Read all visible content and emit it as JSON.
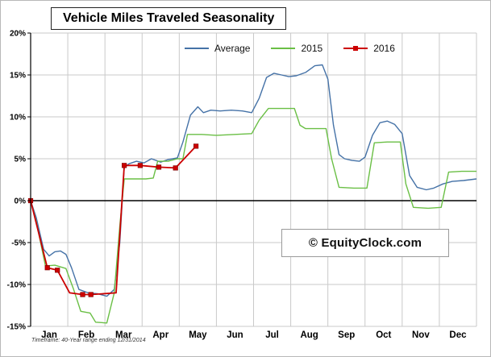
{
  "title": "Vehicle Miles Traveled Seasonality",
  "watermark": "© EquityClock.com",
  "footnote": "Timeframe: 40-Year range ending 12/31/2014",
  "colors": {
    "average": "#4572a7",
    "y2015": "#6abf45",
    "y2016": "#cc0000",
    "grid": "#c9c9c9",
    "zero_line": "#000000",
    "axis": "#000000"
  },
  "chart_data": {
    "type": "line",
    "title": "Vehicle Miles Traveled Seasonality",
    "x_unit": "month index (0 = Jan 1, 12 = Dec 31)",
    "xlim": [
      0,
      12
    ],
    "ylim": [
      -15,
      20
    ],
    "grid": true,
    "zero_line": true,
    "legend_position": "top-center",
    "x_tick_labels": [
      "Jan",
      "Feb",
      "Mar",
      "Apr",
      "May",
      "Jun",
      "Jul",
      "Aug",
      "Sep",
      "Oct",
      "Nov",
      "Dec"
    ],
    "y_tick_labels": [
      "20%",
      "15%",
      "10%",
      "5%",
      "0%",
      "-5%",
      "-10%",
      "-15%"
    ],
    "y_tick_values": [
      20,
      15,
      10,
      5,
      0,
      -5,
      -10,
      -15
    ],
    "series": [
      {
        "name": "Average",
        "color": "#4572a7",
        "marker": "none",
        "points": [
          [
            0.0,
            0.0
          ],
          [
            0.15,
            -2.0
          ],
          [
            0.35,
            -5.8
          ],
          [
            0.5,
            -6.6
          ],
          [
            0.65,
            -6.1
          ],
          [
            0.8,
            -6.0
          ],
          [
            0.95,
            -6.4
          ],
          [
            1.1,
            -8.0
          ],
          [
            1.3,
            -10.6
          ],
          [
            1.55,
            -11.0
          ],
          [
            1.8,
            -11.1
          ],
          [
            2.05,
            -11.4
          ],
          [
            2.25,
            -10.6
          ],
          [
            2.4,
            -5.0
          ],
          [
            2.52,
            4.0
          ],
          [
            2.65,
            4.4
          ],
          [
            2.85,
            4.7
          ],
          [
            3.05,
            4.5
          ],
          [
            3.25,
            5.0
          ],
          [
            3.5,
            4.6
          ],
          [
            3.7,
            4.9
          ],
          [
            3.95,
            5.1
          ],
          [
            4.1,
            7.0
          ],
          [
            4.3,
            10.2
          ],
          [
            4.5,
            11.2
          ],
          [
            4.65,
            10.5
          ],
          [
            4.85,
            10.8
          ],
          [
            5.1,
            10.7
          ],
          [
            5.4,
            10.8
          ],
          [
            5.7,
            10.7
          ],
          [
            5.95,
            10.5
          ],
          [
            6.15,
            12.2
          ],
          [
            6.35,
            14.7
          ],
          [
            6.55,
            15.2
          ],
          [
            6.75,
            15.0
          ],
          [
            6.95,
            14.8
          ],
          [
            7.15,
            14.9
          ],
          [
            7.4,
            15.3
          ],
          [
            7.65,
            16.1
          ],
          [
            7.85,
            16.2
          ],
          [
            8.0,
            14.5
          ],
          [
            8.15,
            9.0
          ],
          [
            8.3,
            5.5
          ],
          [
            8.45,
            5.0
          ],
          [
            8.65,
            4.8
          ],
          [
            8.85,
            4.7
          ],
          [
            9.0,
            5.2
          ],
          [
            9.2,
            7.8
          ],
          [
            9.4,
            9.3
          ],
          [
            9.6,
            9.5
          ],
          [
            9.8,
            9.1
          ],
          [
            10.0,
            8.0
          ],
          [
            10.2,
            3.0
          ],
          [
            10.4,
            1.6
          ],
          [
            10.65,
            1.3
          ],
          [
            10.85,
            1.5
          ],
          [
            11.1,
            2.0
          ],
          [
            11.35,
            2.3
          ],
          [
            11.65,
            2.4
          ],
          [
            12.0,
            2.6
          ]
        ]
      },
      {
        "name": "2015",
        "color": "#6abf45",
        "marker": "none",
        "points": [
          [
            0.0,
            0.0
          ],
          [
            0.15,
            -2.5
          ],
          [
            0.4,
            -7.8
          ],
          [
            0.65,
            -7.7
          ],
          [
            0.95,
            -8.1
          ],
          [
            1.15,
            -10.5
          ],
          [
            1.35,
            -13.2
          ],
          [
            1.6,
            -13.4
          ],
          [
            1.75,
            -14.5
          ],
          [
            2.05,
            -14.6
          ],
          [
            2.25,
            -11.0
          ],
          [
            2.4,
            -3.0
          ],
          [
            2.52,
            2.6
          ],
          [
            2.8,
            2.6
          ],
          [
            3.1,
            2.6
          ],
          [
            3.3,
            2.7
          ],
          [
            3.42,
            4.7
          ],
          [
            3.7,
            4.7
          ],
          [
            3.95,
            5.0
          ],
          [
            4.1,
            5.0
          ],
          [
            4.22,
            7.9
          ],
          [
            4.6,
            7.9
          ],
          [
            5.0,
            7.8
          ],
          [
            5.5,
            7.9
          ],
          [
            5.95,
            8.0
          ],
          [
            6.15,
            9.6
          ],
          [
            6.4,
            11.0
          ],
          [
            6.8,
            11.0
          ],
          [
            7.1,
            11.0
          ],
          [
            7.25,
            9.0
          ],
          [
            7.4,
            8.6
          ],
          [
            7.95,
            8.6
          ],
          [
            8.1,
            5.0
          ],
          [
            8.3,
            1.6
          ],
          [
            8.7,
            1.5
          ],
          [
            9.05,
            1.5
          ],
          [
            9.25,
            6.9
          ],
          [
            9.6,
            7.0
          ],
          [
            9.95,
            7.0
          ],
          [
            10.1,
            2.0
          ],
          [
            10.3,
            -0.8
          ],
          [
            10.7,
            -0.9
          ],
          [
            11.05,
            -0.8
          ],
          [
            11.25,
            3.4
          ],
          [
            11.6,
            3.5
          ],
          [
            12.0,
            3.5
          ]
        ]
      },
      {
        "name": "2016",
        "color": "#cc0000",
        "marker": "square",
        "points": [
          [
            0.0,
            0.0
          ],
          [
            0.45,
            -8.0
          ],
          [
            0.72,
            -8.3
          ],
          [
            1.05,
            -11.0
          ],
          [
            1.4,
            -11.2
          ],
          [
            1.62,
            -11.2
          ],
          [
            2.3,
            -11.0
          ],
          [
            2.52,
            4.2
          ],
          [
            2.95,
            4.2
          ],
          [
            3.45,
            4.0
          ],
          [
            3.9,
            3.9
          ],
          [
            4.45,
            6.5
          ]
        ],
        "marker_points": [
          [
            0.0,
            0.0
          ],
          [
            0.45,
            -8.0
          ],
          [
            0.72,
            -8.3
          ],
          [
            1.4,
            -11.2
          ],
          [
            1.62,
            -11.2
          ],
          [
            2.52,
            4.2
          ],
          [
            2.95,
            4.2
          ],
          [
            3.45,
            4.0
          ],
          [
            3.9,
            3.9
          ],
          [
            4.45,
            6.5
          ]
        ]
      }
    ]
  }
}
